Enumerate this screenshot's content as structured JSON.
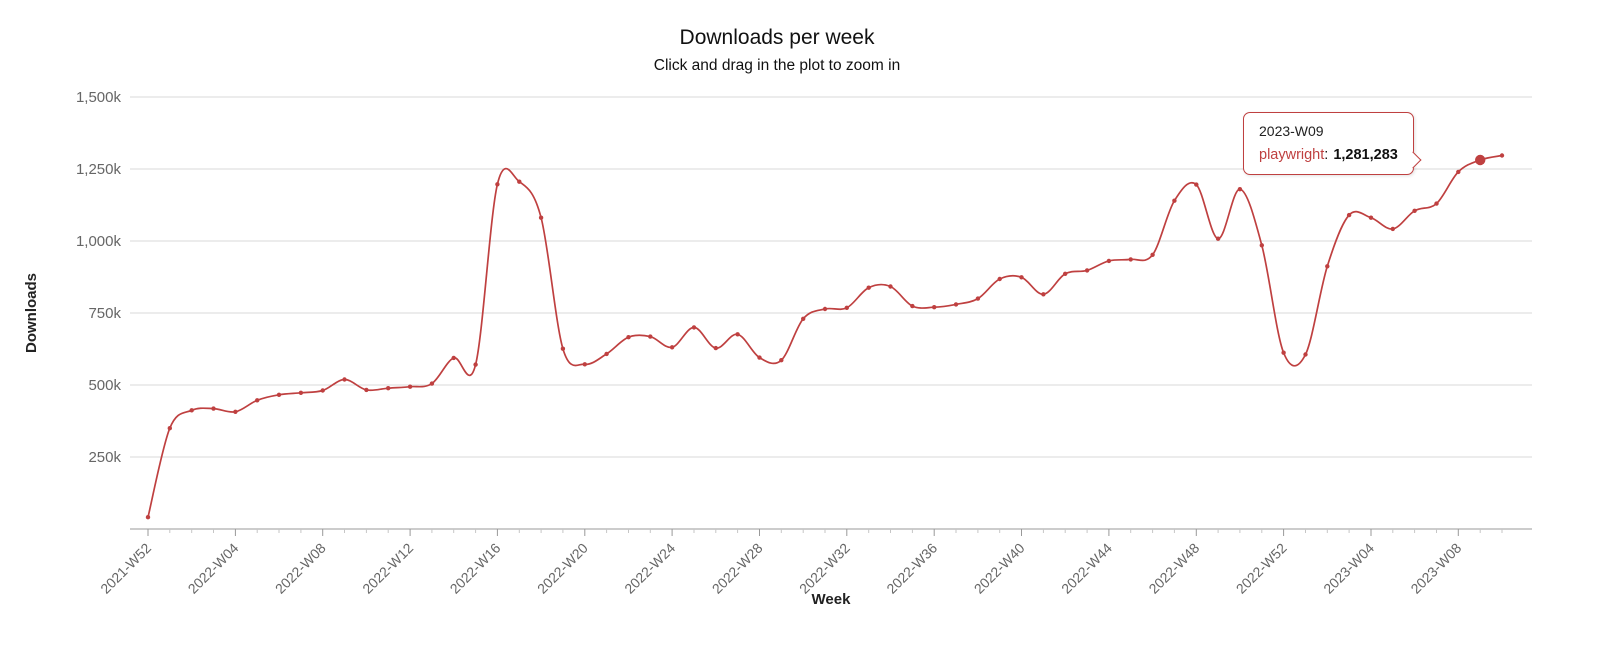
{
  "chart_data": {
    "type": "line",
    "title": "Downloads per week",
    "subtitle": "Click and drag in the plot to zoom in",
    "xlabel": "Week",
    "ylabel": "Downloads",
    "series_name": "playwright",
    "grid": true,
    "legend": false,
    "ylim": [
      0,
      1500000
    ],
    "y_ticks": [
      250000,
      500000,
      750000,
      1000000,
      1250000,
      1500000
    ],
    "y_tick_labels": [
      "250k",
      "500k",
      "750k",
      "1,000k",
      "1,250k",
      "1,500k"
    ],
    "x_tick_labels": [
      "2021-W52",
      "2022-W04",
      "2022-W08",
      "2022-W12",
      "2022-W16",
      "2022-W20",
      "2022-W24",
      "2022-W28",
      "2022-W32",
      "2022-W36",
      "2022-W40",
      "2022-W44",
      "2022-W48",
      "2022-W52",
      "2023-W04",
      "2023-W08"
    ],
    "categories": [
      "2021-W52",
      "2022-W01",
      "2022-W02",
      "2022-W03",
      "2022-W04",
      "2022-W05",
      "2022-W06",
      "2022-W07",
      "2022-W08",
      "2022-W09",
      "2022-W10",
      "2022-W11",
      "2022-W12",
      "2022-W13",
      "2022-W14",
      "2022-W15",
      "2022-W16",
      "2022-W17",
      "2022-W18",
      "2022-W19",
      "2022-W20",
      "2022-W21",
      "2022-W22",
      "2022-W23",
      "2022-W24",
      "2022-W25",
      "2022-W26",
      "2022-W27",
      "2022-W28",
      "2022-W29",
      "2022-W30",
      "2022-W31",
      "2022-W32",
      "2022-W33",
      "2022-W34",
      "2022-W35",
      "2022-W36",
      "2022-W37",
      "2022-W38",
      "2022-W39",
      "2022-W40",
      "2022-W41",
      "2022-W42",
      "2022-W43",
      "2022-W44",
      "2022-W45",
      "2022-W46",
      "2022-W47",
      "2022-W48",
      "2022-W49",
      "2022-W50",
      "2022-W51",
      "2022-W52",
      "2023-W01",
      "2023-W02",
      "2023-W03",
      "2023-W04",
      "2023-W05",
      "2023-W06",
      "2023-W07",
      "2023-W08",
      "2023-W09",
      "2023-W10"
    ],
    "values": [
      41000,
      350000,
      412000,
      418000,
      407000,
      447000,
      466000,
      473000,
      481000,
      519000,
      483000,
      489000,
      494000,
      505000,
      594000,
      571000,
      1197000,
      1206000,
      1081000,
      626000,
      572000,
      608000,
      666000,
      668000,
      631000,
      700000,
      628000,
      676000,
      595000,
      586000,
      730000,
      764000,
      768000,
      838000,
      842000,
      774000,
      770000,
      780000,
      800000,
      868000,
      874000,
      815000,
      886000,
      898000,
      931000,
      936000,
      952000,
      1140000,
      1196000,
      1008000,
      1180000,
      985000,
      612000,
      606000,
      912000,
      1090000,
      1081000,
      1042000,
      1105000,
      1130000,
      1240000,
      1281283,
      1297000
    ],
    "highlight_index": 61,
    "highlighted_point": {
      "week": "2023-W09",
      "value": 1281283
    },
    "colors": {
      "line": "#bf4040",
      "grid": "#d8d8d8",
      "axis": "#999999",
      "minor_tick": "#c6c6c6",
      "tick_label": "#666666",
      "tooltip_border": "#bf4040"
    }
  },
  "tooltip": {
    "week": "2023-W09",
    "series": "playwright",
    "separator": ":",
    "value": "1,281,283"
  }
}
